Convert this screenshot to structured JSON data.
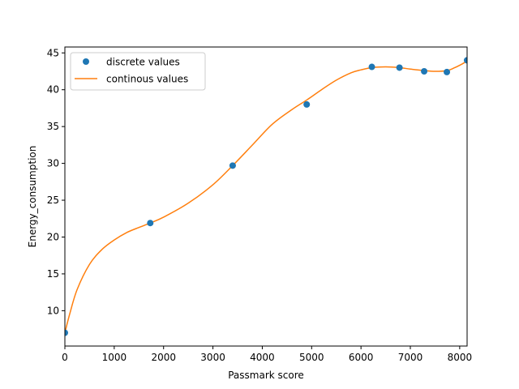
{
  "chart_data": {
    "type": "line",
    "title": "",
    "xlabel": "Passmark score",
    "ylabel": "Energy_consumption",
    "xlim": [
      0,
      8150
    ],
    "ylim": [
      5.2,
      45.8
    ],
    "xticks": [
      0,
      1000,
      2000,
      3000,
      4000,
      5000,
      6000,
      7000,
      8000
    ],
    "yticks": [
      10,
      15,
      20,
      25,
      30,
      35,
      40,
      45
    ],
    "grid": false,
    "legend_position": "top-left",
    "series": [
      {
        "name": "discrete values",
        "style": "markers",
        "color": "#1f77b4",
        "x": [
          0,
          1730,
          3400,
          4900,
          6220,
          6780,
          7280,
          7740,
          8150
        ],
        "y": [
          7.0,
          21.9,
          29.7,
          38.0,
          43.1,
          43.0,
          42.5,
          42.4,
          44.0
        ]
      },
      {
        "name": "continous values",
        "style": "line",
        "color": "#ff7f0e",
        "x": [
          0,
          100,
          250,
          500,
          750,
          1000,
          1250,
          1500,
          1730,
          2000,
          2500,
          3000,
          3400,
          3800,
          4200,
          4600,
          4900,
          5200,
          5500,
          5800,
          6000,
          6220,
          6500,
          6780,
          7000,
          7280,
          7500,
          7740,
          7900,
          8050,
          8150
        ],
        "y": [
          7.0,
          9.6,
          12.9,
          16.3,
          18.3,
          19.6,
          20.6,
          21.3,
          21.9,
          22.7,
          24.6,
          27.1,
          29.7,
          32.5,
          35.3,
          37.3,
          38.6,
          40.0,
          41.3,
          42.3,
          42.7,
          43.0,
          43.1,
          43.0,
          42.8,
          42.6,
          42.5,
          42.6,
          43.0,
          43.5,
          43.9
        ]
      }
    ]
  }
}
